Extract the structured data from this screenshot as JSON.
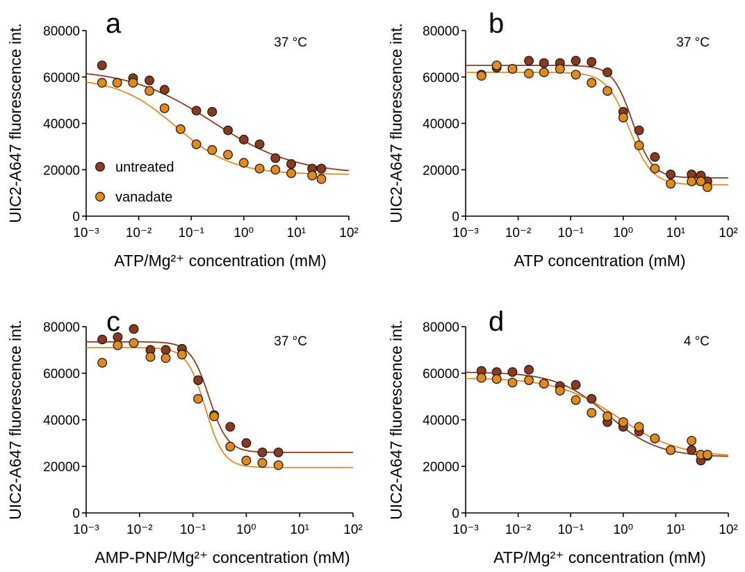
{
  "chart_data": [
    {
      "panel": "a",
      "type": "scatter",
      "annotation": "37 °C",
      "xlabel": "ATP/Mg²⁺ concentration (mM)",
      "ylabel": "UIC2-A647 fluorescence int.",
      "xscale": "log",
      "xlim": [
        0.001,
        100
      ],
      "ylim": [
        0,
        80000
      ],
      "y_ticks": [
        "0",
        "20000",
        "40000",
        "60000",
        "80000"
      ],
      "x_ticks": [
        "10⁻³",
        "10⁻²",
        "10⁻¹",
        "10⁰",
        "10¹",
        "10²"
      ],
      "legend": {
        "position": "bottom-left",
        "entries": [
          "untreated",
          "vanadate"
        ]
      },
      "series": [
        {
          "name": "untreated",
          "color": "#8B3A1E",
          "points": [
            [
              0.002,
              65000
            ],
            [
              0.0078,
              59500
            ],
            [
              0.016,
              58500
            ],
            [
              0.031,
              54500
            ],
            [
              0.125,
              45500
            ],
            [
              0.25,
              45000
            ],
            [
              0.5,
              37000
            ],
            [
              1.0,
              33000
            ],
            [
              2.0,
              31000
            ],
            [
              4.0,
              25000
            ],
            [
              8.0,
              22500
            ],
            [
              20,
              20500
            ],
            [
              30,
              20500
            ]
          ],
          "fit": {
            "top": 63500,
            "bottom": 18000,
            "ec50": 0.25,
            "hill": 0.55
          }
        },
        {
          "name": "vanadate",
          "color": "#E38A1E",
          "points": [
            [
              0.002,
              57500
            ],
            [
              0.0039,
              57500
            ],
            [
              0.0078,
              57500
            ],
            [
              0.016,
              54000
            ],
            [
              0.031,
              46500
            ],
            [
              0.0625,
              37500
            ],
            [
              0.125,
              31000
            ],
            [
              0.25,
              28500
            ],
            [
              0.5,
              26500
            ],
            [
              1.0,
              23000
            ],
            [
              2.0,
              20500
            ],
            [
              4.0,
              20000
            ],
            [
              8.0,
              18500
            ],
            [
              20,
              17500
            ],
            [
              30,
              16000
            ]
          ],
          "fit": {
            "top": 59500,
            "bottom": 18000,
            "ec50": 0.05,
            "hill": 0.8
          }
        }
      ]
    },
    {
      "panel": "b",
      "type": "scatter",
      "annotation": "37 °C",
      "xlabel": "ATP concentration (mM)",
      "ylabel": "UIC2-A647 fluorescence int.",
      "xscale": "log",
      "xlim": [
        0.001,
        100
      ],
      "ylim": [
        0,
        80000
      ],
      "y_ticks": [
        "0",
        "20000",
        "40000",
        "60000",
        "80000"
      ],
      "x_ticks": [
        "10⁻³",
        "10⁻²",
        "10⁻¹",
        "10⁰",
        "10¹",
        "10²"
      ],
      "series": [
        {
          "name": "untreated",
          "color": "#8B3A1E",
          "points": [
            [
              0.002,
              61000
            ],
            [
              0.0039,
              64000
            ],
            [
              0.0078,
              63500
            ],
            [
              0.016,
              67000
            ],
            [
              0.031,
              66000
            ],
            [
              0.0625,
              66000
            ],
            [
              0.125,
              67000
            ],
            [
              0.25,
              66500
            ],
            [
              0.5,
              62000
            ],
            [
              1.0,
              45000
            ],
            [
              2.0,
              37000
            ],
            [
              4.0,
              25500
            ],
            [
              8.0,
              18000
            ],
            [
              20,
              18000
            ],
            [
              30,
              17500
            ],
            [
              40,
              15000
            ]
          ],
          "fit": {
            "top": 65000,
            "bottom": 16500,
            "ec50": 1.5,
            "hill": 2.3
          }
        },
        {
          "name": "vanadate",
          "color": "#E38A1E",
          "points": [
            [
              0.002,
              60500
            ],
            [
              0.0039,
              65000
            ],
            [
              0.0078,
              63500
            ],
            [
              0.016,
              61500
            ],
            [
              0.031,
              62000
            ],
            [
              0.0625,
              63500
            ],
            [
              0.125,
              61000
            ],
            [
              0.25,
              57500
            ],
            [
              0.5,
              54000
            ],
            [
              1.0,
              42500
            ],
            [
              2.0,
              30500
            ],
            [
              4.0,
              20500
            ],
            [
              8.0,
              14000
            ],
            [
              20,
              15000
            ],
            [
              30,
              15000
            ],
            [
              40,
              12500
            ]
          ],
          "fit": {
            "top": 62000,
            "bottom": 13500,
            "ec50": 1.3,
            "hill": 2.0
          }
        }
      ]
    },
    {
      "panel": "c",
      "type": "scatter",
      "annotation": "37 °C",
      "xlabel": "AMP-PNP/Mg²⁺ concentration (mM)",
      "ylabel": "UIC2-A647 fluorescence int.",
      "xscale": "log",
      "xlim": [
        0.001,
        100
      ],
      "ylim": [
        0,
        80000
      ],
      "y_ticks": [
        "0",
        "20000",
        "40000",
        "60000",
        "80000"
      ],
      "x_ticks": [
        "10⁻³",
        "10⁻²",
        "10⁻¹",
        "10⁰",
        "10¹",
        "10²"
      ],
      "series": [
        {
          "name": "untreated",
          "color": "#8B3A1E",
          "points": [
            [
              0.002,
              74500
            ],
            [
              0.0039,
              75500
            ],
            [
              0.0078,
              79000
            ],
            [
              0.016,
              70000
            ],
            [
              0.031,
              70000
            ],
            [
              0.0625,
              70500
            ],
            [
              0.125,
              57000
            ],
            [
              0.25,
              42000
            ],
            [
              0.5,
              37000
            ],
            [
              1.0,
              30000
            ],
            [
              2.0,
              26000
            ],
            [
              4.0,
              26000
            ]
          ],
          "fit": {
            "top": 73500,
            "bottom": 26000,
            "ec50": 0.2,
            "hill": 2.5
          }
        },
        {
          "name": "vanadate",
          "color": "#E38A1E",
          "points": [
            [
              0.002,
              64500
            ],
            [
              0.0039,
              72000
            ],
            [
              0.0078,
              73000
            ],
            [
              0.016,
              67000
            ],
            [
              0.031,
              66500
            ],
            [
              0.0625,
              68000
            ],
            [
              0.125,
              49000
            ],
            [
              0.25,
              41500
            ],
            [
              0.5,
              28500
            ],
            [
              1.0,
              22500
            ],
            [
              2.0,
              21500
            ],
            [
              4.0,
              20500
            ]
          ],
          "fit": {
            "top": 71000,
            "bottom": 19500,
            "ec50": 0.17,
            "hill": 2.5
          }
        }
      ]
    },
    {
      "panel": "d",
      "type": "scatter",
      "annotation": "4 °C",
      "xlabel": "ATP/Mg²⁺ concentration (mM)",
      "ylabel": "UIC2-A647 fluorescence int.",
      "xscale": "log",
      "xlim": [
        0.001,
        100
      ],
      "ylim": [
        0,
        80000
      ],
      "y_ticks": [
        "0",
        "20000",
        "40000",
        "60000",
        "80000"
      ],
      "x_ticks": [
        "10⁻³",
        "10⁻²",
        "10⁻¹",
        "10⁰",
        "10¹",
        "10²"
      ],
      "series": [
        {
          "name": "untreated",
          "color": "#8B3A1E",
          "points": [
            [
              0.002,
              61000
            ],
            [
              0.0039,
              60500
            ],
            [
              0.0078,
              60500
            ],
            [
              0.016,
              61500
            ],
            [
              0.031,
              55500
            ],
            [
              0.0625,
              54500
            ],
            [
              0.125,
              55000
            ],
            [
              0.25,
              49000
            ],
            [
              0.5,
              39000
            ],
            [
              1.0,
              37000
            ],
            [
              2.0,
              35000
            ],
            [
              4.0,
              32000
            ],
            [
              8.0,
              27000
            ],
            [
              20,
              27000
            ],
            [
              30,
              22500
            ],
            [
              40,
              24500
            ]
          ],
          "fit": {
            "top": 60500,
            "bottom": 24000,
            "ec50": 0.5,
            "hill": 0.9
          }
        },
        {
          "name": "vanadate",
          "color": "#E38A1E",
          "points": [
            [
              0.002,
              58000
            ],
            [
              0.0039,
              57500
            ],
            [
              0.0078,
              56000
            ],
            [
              0.016,
              57000
            ],
            [
              0.031,
              55500
            ],
            [
              0.0625,
              52500
            ],
            [
              0.125,
              48500
            ],
            [
              0.25,
              43000
            ],
            [
              0.5,
              41500
            ],
            [
              1.0,
              39000
            ],
            [
              2.0,
              37000
            ],
            [
              4.0,
              32000
            ],
            [
              8.0,
              27000
            ],
            [
              20,
              31000
            ],
            [
              30,
              25000
            ],
            [
              40,
              25000
            ]
          ],
          "fit": {
            "top": 58000,
            "bottom": 24000,
            "ec50": 0.8,
            "hill": 0.75
          }
        }
      ]
    }
  ]
}
